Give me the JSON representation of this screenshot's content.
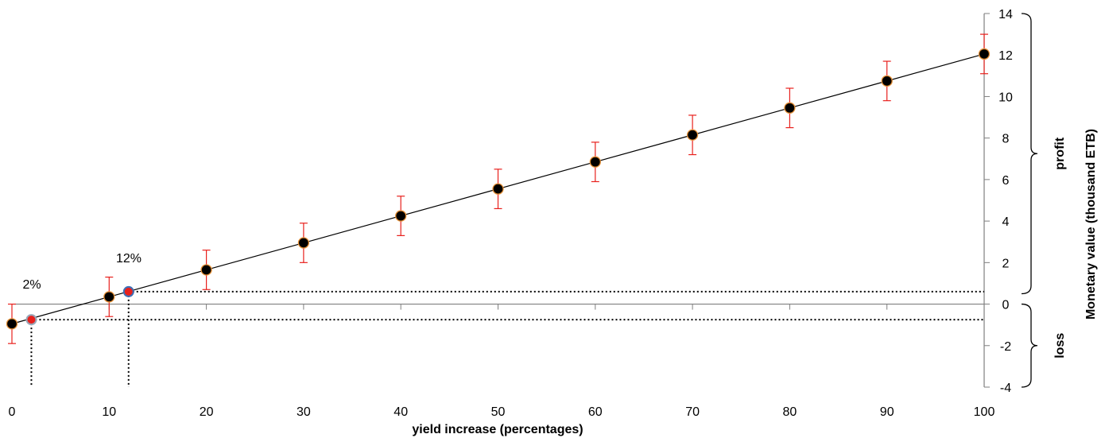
{
  "chart_data": {
    "type": "scatter",
    "title": "",
    "xlabel": "yield increase (percentages)",
    "ylabel": "Monetary value (thousand ETB)",
    "xlim": [
      0,
      100
    ],
    "ylim": [
      -4,
      14
    ],
    "x_ticks": [
      "0",
      "10",
      "20",
      "30",
      "40",
      "50",
      "60",
      "70",
      "80",
      "90",
      "100"
    ],
    "y_ticks": [
      "-4",
      "-2",
      "0",
      "2",
      "4",
      "6",
      "8",
      "10",
      "12",
      "14"
    ],
    "y_axis_side": "right",
    "grid": false,
    "legend": "none",
    "series": [
      {
        "x": [
          0,
          10,
          20,
          30,
          40,
          50,
          60,
          70,
          80,
          90,
          100
        ],
        "y": [
          -0.95,
          0.35,
          1.65,
          2.95,
          4.25,
          5.55,
          6.85,
          8.15,
          9.45,
          10.75,
          12.05
        ],
        "error": [
          0.95,
          0.95,
          0.95,
          0.95,
          0.95,
          0.95,
          0.95,
          0.95,
          0.95,
          0.95,
          0.95
        ],
        "marker_color": "#000000",
        "marker_edge": "#e69138",
        "line_color": "#000000",
        "error_color": "#e8211d"
      }
    ],
    "highlight_points": [
      {
        "label": "2%",
        "x": 2,
        "y": -0.75,
        "fill": "#e8211d",
        "edge": "#9aa7b8"
      },
      {
        "label": "12%",
        "x": 12,
        "y": 0.6,
        "fill": "#e8211d",
        "edge": "#3d6fb6"
      }
    ],
    "brackets": [
      {
        "label": "profit",
        "from": 0.5,
        "to": 14
      },
      {
        "label": "loss",
        "from": -4,
        "to": 0
      }
    ]
  }
}
